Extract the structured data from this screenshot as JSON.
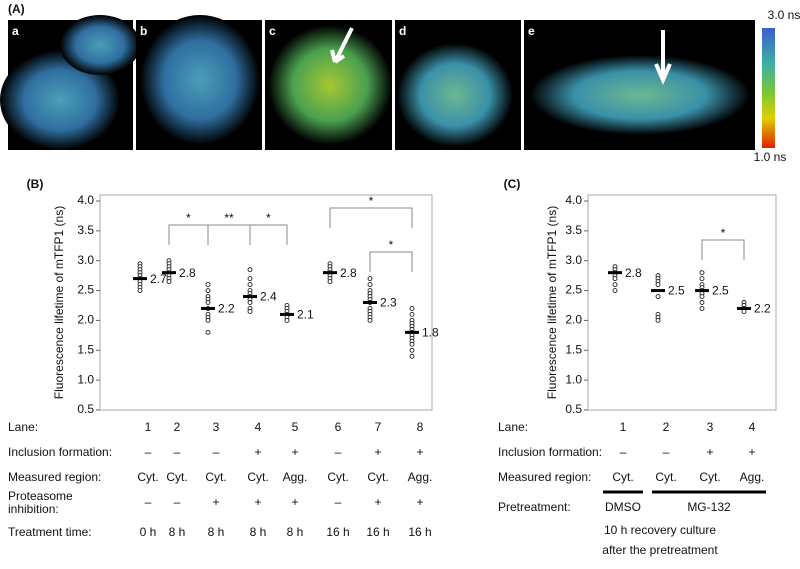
{
  "panel_a": {
    "label": "(A)",
    "images": [
      "a",
      "b",
      "c",
      "d",
      "e"
    ],
    "colorbar_top": "3.0 ns",
    "colorbar_bottom": "1.0 ns"
  },
  "chart_data": [
    {
      "type": "strip",
      "panel": "(B)",
      "ylabel": "Fluorescence lifetime of mTFP1 (ns)",
      "category_label": "Lane:",
      "categories": [
        "1",
        "2",
        "3",
        "4",
        "5",
        "6",
        "7",
        "8"
      ],
      "values": [
        2.7,
        2.8,
        2.2,
        2.4,
        2.1,
        2.8,
        2.3,
        1.8
      ],
      "points": [
        [
          2.95,
          2.9,
          2.85,
          2.8,
          2.75,
          2.7,
          2.65,
          2.6,
          2.55,
          2.5
        ],
        [
          3.0,
          2.95,
          2.9,
          2.85,
          2.8,
          2.75,
          2.7,
          2.65
        ],
        [
          2.6,
          2.5,
          2.4,
          2.35,
          2.3,
          2.2,
          2.1,
          2.05,
          2.0,
          1.8
        ],
        [
          2.85,
          2.7,
          2.6,
          2.5,
          2.45,
          2.4,
          2.35,
          2.3,
          2.2,
          2.15
        ],
        [
          2.25,
          2.2,
          2.15,
          2.1,
          2.05,
          2.0
        ],
        [
          2.95,
          2.9,
          2.85,
          2.8,
          2.75,
          2.7,
          2.65
        ],
        [
          2.7,
          2.6,
          2.5,
          2.45,
          2.4,
          2.35,
          2.3,
          2.2,
          2.15,
          2.1,
          2.05,
          2.0
        ],
        [
          2.2,
          2.1,
          2.0,
          1.95,
          1.9,
          1.85,
          1.8,
          1.75,
          1.7,
          1.65,
          1.6,
          1.5,
          1.4
        ]
      ],
      "ylim": [
        0.5,
        4.1
      ],
      "yticks": [
        {
          "value": 0.5,
          "label": "0.5"
        },
        {
          "value": 1,
          "label": "1.0"
        },
        {
          "value": 1.5,
          "label": "1.5"
        },
        {
          "value": 2,
          "label": "2.0"
        },
        {
          "value": 2.5,
          "label": "2.5"
        },
        {
          "value": 3,
          "label": "3.0"
        },
        {
          "value": 3.5,
          "label": "3.5"
        },
        {
          "value": 4,
          "label": "4.0"
        }
      ],
      "significance": [
        {
          "between": [
            "2",
            "3"
          ],
          "label": "*"
        },
        {
          "between": [
            "3",
            "4"
          ],
          "label": "**"
        },
        {
          "between": [
            "4",
            "5"
          ],
          "label": "*"
        },
        {
          "between": [
            "6",
            "8"
          ],
          "label": "*"
        },
        {
          "between": [
            "7",
            "8"
          ],
          "label": "*"
        }
      ],
      "conditions": [
        {
          "label": "Inclusion formation:",
          "cells": [
            "–",
            "–",
            "–",
            "+",
            "+",
            "–",
            "+",
            "+"
          ]
        },
        {
          "label": "Measured region:",
          "cells": [
            "Cyt.",
            "Cyt.",
            "Cyt.",
            "Cyt.",
            "Agg.",
            "Cyt.",
            "Cyt.",
            "Agg."
          ]
        },
        {
          "label": "Proteasome inhibition:",
          "cells": [
            "–",
            "–",
            "+",
            "+",
            "+",
            "–",
            "+",
            "+"
          ]
        },
        {
          "label": "Treatment time:",
          "cells": [
            "0 h",
            "8 h",
            "8 h",
            "8 h",
            "8 h",
            "16 h",
            "16 h",
            "16 h"
          ]
        }
      ]
    },
    {
      "type": "strip",
      "panel": "(C)",
      "ylabel": "Fluorescence lifetime of mTFP1 (ns)",
      "category_label": "Lane:",
      "categories": [
        "1",
        "2",
        "3",
        "4"
      ],
      "values": [
        2.8,
        2.5,
        2.5,
        2.2
      ],
      "points": [
        [
          2.9,
          2.85,
          2.8,
          2.75,
          2.7,
          2.6,
          2.5
        ],
        [
          2.75,
          2.7,
          2.65,
          2.6,
          2.4,
          2.1,
          2.05,
          2.0
        ],
        [
          2.8,
          2.7,
          2.6,
          2.55,
          2.5,
          2.45,
          2.4,
          2.3,
          2.2
        ],
        [
          2.3,
          2.25,
          2.2,
          2.15
        ]
      ],
      "ylim": [
        0.5,
        4.1
      ],
      "yticks": [
        {
          "value": 0.5,
          "label": "0.5"
        },
        {
          "value": 1,
          "label": "1.0"
        },
        {
          "value": 1.5,
          "label": "1.5"
        },
        {
          "value": 2,
          "label": "2.0"
        },
        {
          "value": 2.5,
          "label": "2.5"
        },
        {
          "value": 3,
          "label": "3.0"
        },
        {
          "value": 3.5,
          "label": "3.5"
        },
        {
          "value": 4,
          "label": "4.0"
        }
      ],
      "significance": [
        {
          "between": [
            "3",
            "4"
          ],
          "label": "*"
        }
      ],
      "conditions": [
        {
          "label": "Inclusion formation:",
          "cells": [
            "–",
            "–",
            "+",
            "+"
          ]
        },
        {
          "label": "Measured region:",
          "cells": [
            "Cyt.",
            "Cyt.",
            "Cyt.",
            "Agg."
          ]
        }
      ],
      "pretreatment": {
        "label": "Pretreatment:",
        "groups": [
          "DMSO",
          "MG-132"
        ],
        "note": [
          "10 h recovery culture",
          "after the pretreatment"
        ]
      }
    }
  ]
}
